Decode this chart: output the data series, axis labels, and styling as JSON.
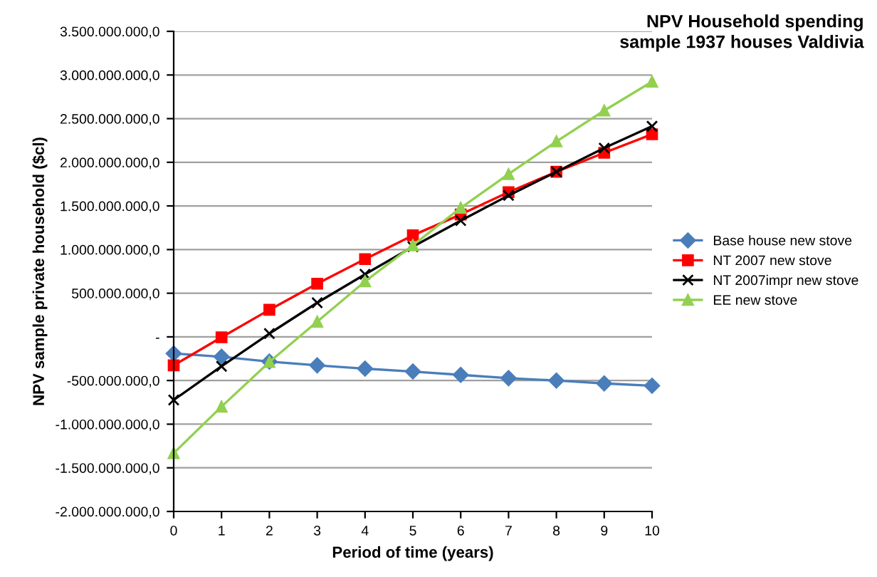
{
  "chart_data": {
    "type": "line",
    "title": "NPV Household spending\nsample 1937 houses Valdivia",
    "xlabel": "Period of time (years)",
    "ylabel": "NPV sample private household ($cl)",
    "x": [
      0,
      1,
      2,
      3,
      4,
      5,
      6,
      7,
      8,
      9,
      10
    ],
    "series": [
      {
        "name": "Base house new stove",
        "color": "#4a7ebb",
        "marker": "diamond",
        "values": [
          -190000000,
          -228000000,
          -283000000,
          -326000000,
          -364000000,
          -397000000,
          -435000000,
          -473000000,
          -500000000,
          -533000000,
          -560000000
        ]
      },
      {
        "name": "NT 2007 new stove",
        "color": "#ff0000",
        "marker": "square",
        "values": [
          -326000000,
          -5000000,
          310000000,
          609000000,
          891000000,
          1163000000,
          1402000000,
          1658000000,
          1891000000,
          2109000000,
          2321000000
        ]
      },
      {
        "name": "NT 2007impr new stove",
        "color": "#000000",
        "marker": "cross",
        "values": [
          -723000000,
          -337000000,
          38000000,
          391000000,
          717000000,
          1033000000,
          1332000000,
          1620000000,
          1891000000,
          2163000000,
          2413000000
        ]
      },
      {
        "name": "EE new stove",
        "color": "#92d050",
        "marker": "triangle",
        "values": [
          -1332000000,
          -799000000,
          -288000000,
          174000000,
          636000000,
          1049000000,
          1478000000,
          1864000000,
          2239000000,
          2592000000,
          2924000000
        ]
      }
    ],
    "xlim": [
      0,
      10
    ],
    "xticks": [
      0,
      1,
      2,
      3,
      4,
      5,
      6,
      7,
      8,
      9,
      10
    ],
    "ylim": [
      -2000000000,
      3500000000
    ],
    "yticks": [
      {
        "value": -2000000000,
        "label": "-2.000.000.000,0"
      },
      {
        "value": -1500000000,
        "label": "-1.500.000.000,0"
      },
      {
        "value": -1000000000,
        "label": "-1.000.000.000,0"
      },
      {
        "value": -500000000,
        "label": "-500.000.000,0"
      },
      {
        "value": 0,
        "label": "-"
      },
      {
        "value": 500000000,
        "label": "500.000.000,0"
      },
      {
        "value": 1000000000,
        "label": "1.000.000.000,0"
      },
      {
        "value": 1500000000,
        "label": "1.500.000.000,0"
      },
      {
        "value": 2000000000,
        "label": "2.000.000.000,0"
      },
      {
        "value": 2500000000,
        "label": "2.500.000.000,0"
      },
      {
        "value": 3000000000,
        "label": "3.000.000.000,0"
      },
      {
        "value": 3500000000,
        "label": "3.500.000.000,0"
      }
    ],
    "grid": "y",
    "legend": "right"
  }
}
